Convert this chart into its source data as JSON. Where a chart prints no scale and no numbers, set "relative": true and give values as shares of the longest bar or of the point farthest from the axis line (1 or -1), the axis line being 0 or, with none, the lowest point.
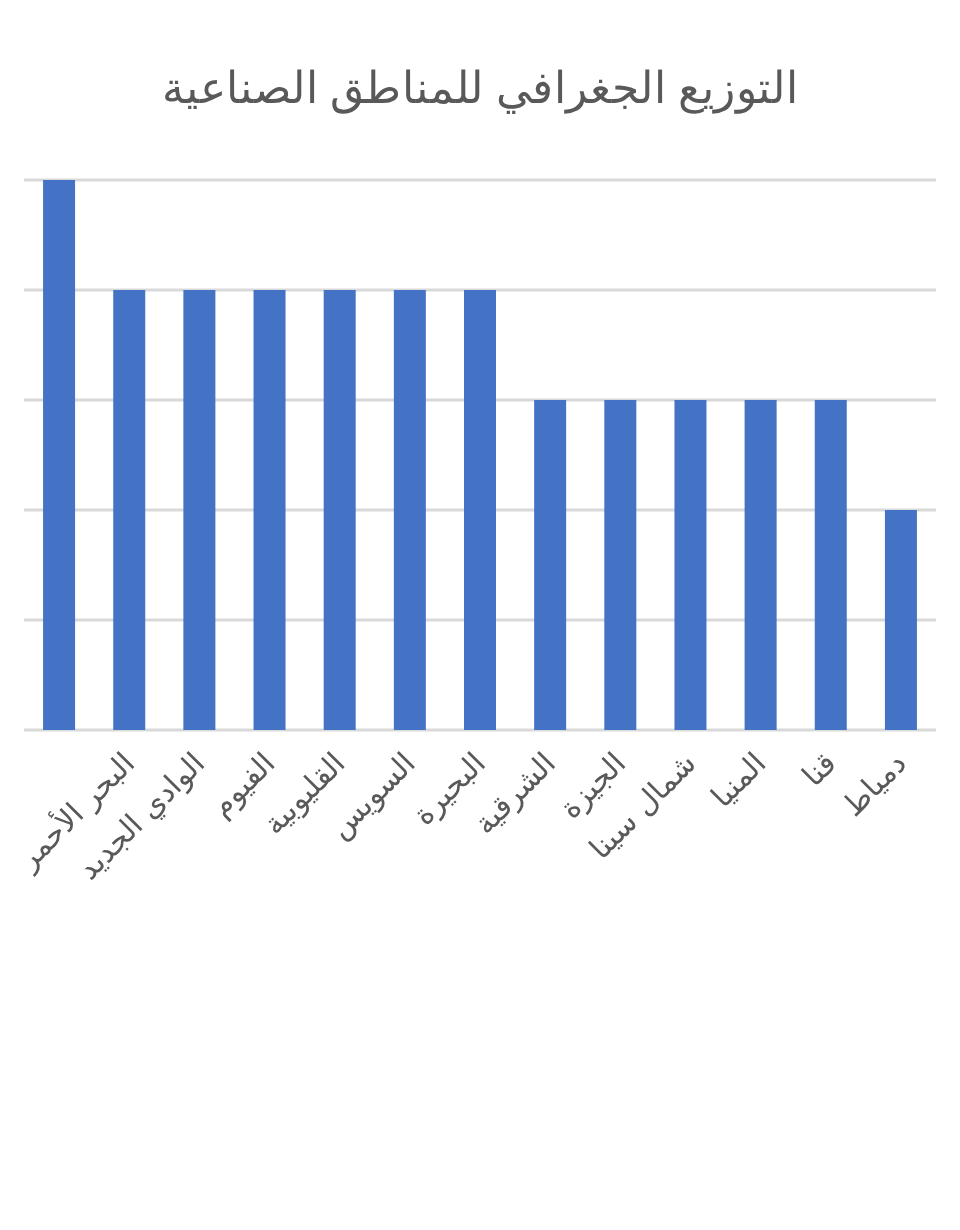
{
  "chart_data": {
    "type": "bar",
    "title": "التوزيع الجغرافي للمناطق الصناعية",
    "relative": true,
    "categories": [
      null,
      "البحر الأحمر",
      "الوادي الجديد",
      "الفيوم",
      "القليوبية",
      "السويس",
      "البحيرة",
      "الشرقية",
      "الجيزة",
      "شمال سينا",
      "المنيا",
      "قنا",
      "دمياط"
    ],
    "values": [
      1,
      0.8,
      0.8,
      0.8,
      0.8,
      0.8,
      0.8,
      0.6,
      0.6,
      0.6,
      0.6,
      0.6,
      0.4
    ],
    "color": "#4472c4",
    "grid": "y"
  }
}
